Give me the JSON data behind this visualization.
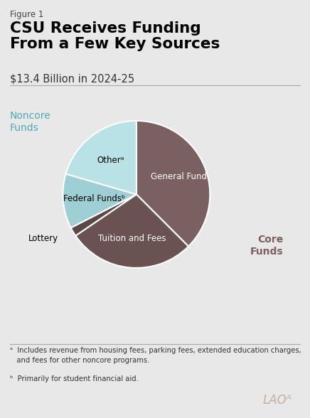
{
  "figure_label": "Figure 1",
  "title": "CSU Receives Funding\nFrom a Few Key Sources",
  "subtitle": "$13.4 Billion in 2024-25",
  "background_color": "#e8e8e8",
  "sizes": [
    37.5,
    28.0,
    2.0,
    12.0,
    20.5
  ],
  "colors": [
    "#7a6060",
    "#6b5252",
    "#5c4747",
    "#9ecfd4",
    "#b8e2e6"
  ],
  "labels_inside": [
    "General Fund",
    "Tuition and Fees",
    "",
    "Federal Fundsᵇ",
    "Otherᵃ"
  ],
  "label_colors": [
    "#ffffff",
    "#ffffff",
    "#000000",
    "#000000",
    "#000000"
  ],
  "noncore_label": "Noncore\nFunds",
  "noncore_label_color": "#4daaaf",
  "core_label": "Core\nFunds",
  "core_label_color": "#7a6060",
  "footnote_a": "ᵃ  Includes revenue from housing fees, parking fees, extended education charges,\n   and fees for other noncore programs.",
  "footnote_b": "ᵇ  Primarily for student financial aid.",
  "lao_text": "LAOᴬ"
}
